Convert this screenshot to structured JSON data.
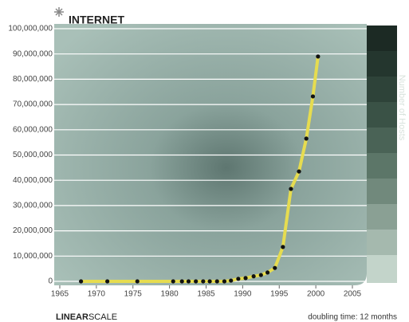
{
  "chart_data": {
    "type": "line",
    "title": "INTERNET",
    "side_label": "Number of Hosts",
    "scale_label_bold": "LINEAR",
    "scale_label": "SCALE",
    "footnote": "doubling time: 12 months",
    "x": [
      1967.9,
      1971.5,
      1975.6,
      1980.5,
      1981.7,
      1982.6,
      1983.6,
      1984.6,
      1985.5,
      1986.5,
      1987.5,
      1988.4,
      1989.4,
      1990.4,
      1991.5,
      1992.5,
      1993.4,
      1994.4,
      1995.5,
      1996.6,
      1997.7,
      1998.7,
      1999.6,
      2000.3
    ],
    "series": [
      {
        "name": "Number of Hosts",
        "color": "#e6dc50",
        "values": [
          0,
          0,
          0,
          0,
          0,
          0,
          0,
          0,
          0,
          0,
          0,
          300000,
          1000000,
          1300000,
          2000000,
          2500000,
          3500000,
          5300000,
          13600000,
          36600000,
          43500000,
          56500000,
          73200000,
          89000000
        ]
      }
    ],
    "xlim": [
      1965,
      2005
    ],
    "xticks": [
      1965,
      1970,
      1975,
      1980,
      1985,
      1990,
      1995,
      2000,
      2005
    ],
    "ylim": [
      0,
      100000000
    ],
    "yticks": [
      0,
      {
        "value": 10000000,
        "label": "10,000,000"
      },
      {
        "value": 20000000,
        "label": "20,000,000"
      },
      {
        "value": 30000000,
        "label": "30,000,000"
      },
      {
        "value": 40000000,
        "label": "40,000,000"
      },
      {
        "value": 50000000,
        "label": "50,000,000"
      },
      {
        "value": 60000000,
        "label": "60,000,000"
      },
      {
        "value": 70000000,
        "label": "70,000,000"
      },
      {
        "value": 80000000,
        "label": "80,000,000"
      },
      {
        "value": 90000000,
        "label": "90,000,000"
      },
      {
        "value": 100000000,
        "label": "100,000,000"
      }
    ],
    "grid": true
  }
}
